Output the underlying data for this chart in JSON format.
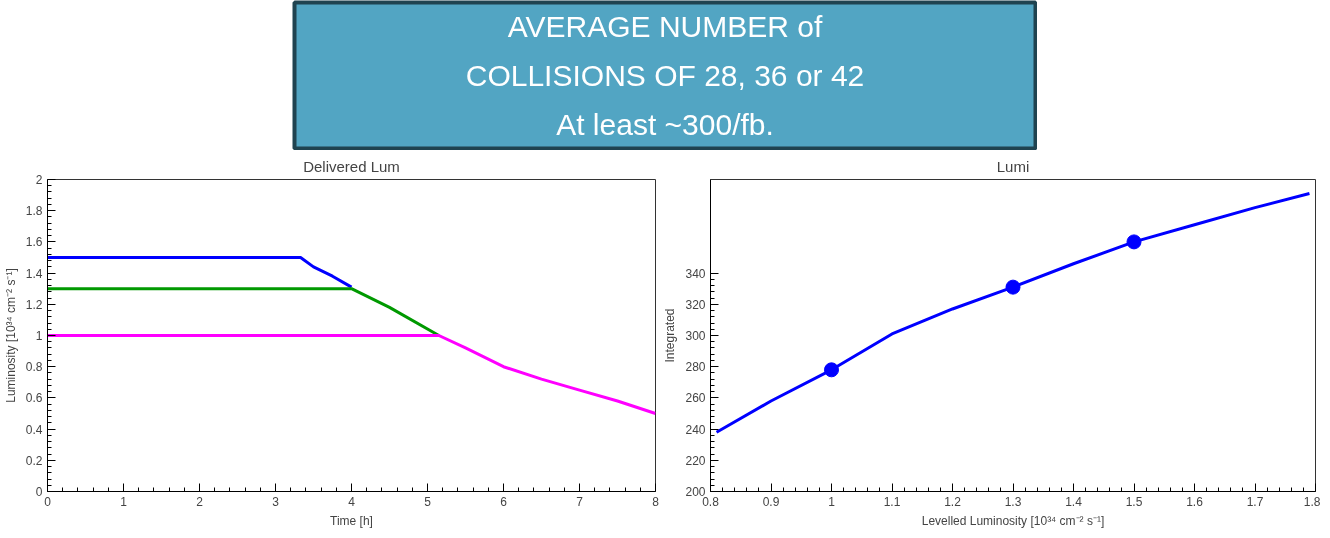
{
  "chart_data": [
    {
      "type": "other",
      "annotations": [
        "AVERAGE NUMBER of",
        "COLLISIONS OF 28, 36 or 42",
        "At least ~300/fb."
      ]
    },
    {
      "type": "line",
      "title": "Delivered Lum",
      "xlabel": "Time [h]",
      "ylabel": "Luminosity [10³⁴ cm⁻² s⁻¹]",
      "xlim": [
        0,
        8
      ],
      "ylim": [
        0,
        2
      ],
      "xticks": [
        0,
        1,
        2,
        3,
        4,
        5,
        6,
        7,
        8
      ],
      "yticks": [
        0,
        0.2,
        0.4,
        0.6,
        0.8,
        1,
        1.2,
        1.4,
        1.6,
        1.8,
        2
      ],
      "grid": false,
      "marker": "none",
      "line_style": "solid",
      "series": [
        {
          "color": "#0000ff",
          "x": [
            0,
            3.33,
            3.5,
            3.75,
            4.0
          ],
          "values": [
            1.5,
            1.5,
            1.44,
            1.38,
            1.31
          ]
        },
        {
          "color": "#009900",
          "x": [
            0,
            4.0,
            4.5,
            5.15
          ],
          "values": [
            1.3,
            1.3,
            1.18,
            1.0
          ]
        },
        {
          "color": "#ff00ff",
          "x": [
            0,
            5.15,
            5.5,
            6,
            6.5,
            7,
            7.5,
            8
          ],
          "values": [
            1.0,
            1.0,
            0.92,
            0.8,
            0.72,
            0.65,
            0.58,
            0.5
          ]
        }
      ]
    },
    {
      "type": "line",
      "title": "Lumi",
      "xlabel": "Levelled Luminosity [10³⁴ cm⁻² s⁻¹]",
      "ylabel": "Integrated",
      "xlim": [
        0.8,
        1.8
      ],
      "ylim": [
        200,
        400
      ],
      "xticks": [
        0.8,
        0.9,
        1,
        1.1,
        1.2,
        1.3,
        1.4,
        1.5,
        1.6,
        1.7,
        1.8
      ],
      "yticks": [
        200,
        220,
        240,
        260,
        280,
        300,
        320,
        340
      ],
      "grid": false,
      "marker": "none",
      "line_style": "solid",
      "series": [
        {
          "color": "#0000ff",
          "x": [
            0.81,
            0.9,
            1.0,
            1.1,
            1.2,
            1.3,
            1.4,
            1.5,
            1.6,
            1.7,
            1.79
          ],
          "values": [
            238,
            258,
            278,
            301,
            317,
            331,
            346,
            360,
            371,
            382,
            391
          ]
        },
        {
          "type": "scatter",
          "marker": "circle",
          "color": "#0000ff",
          "x": [
            1.0,
            1.3,
            1.5
          ],
          "values": [
            278,
            331,
            360
          ]
        }
      ]
    }
  ]
}
